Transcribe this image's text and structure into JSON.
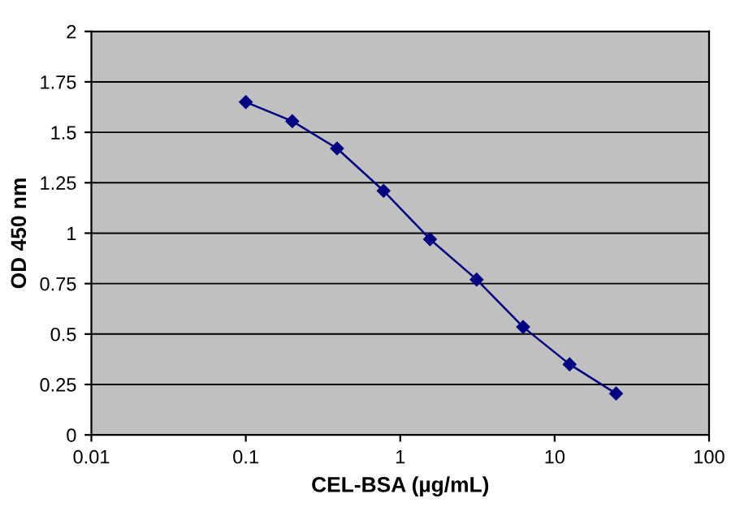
{
  "chart_data": {
    "type": "line",
    "xlabel": "CEL-BSA (µg/mL)",
    "ylabel": "OD 450 nm",
    "x": [
      0.1,
      0.2,
      0.39,
      0.78,
      1.56,
      3.125,
      6.25,
      12.5,
      25
    ],
    "series": [
      {
        "color": "#000080",
        "values": [
          1.65,
          1.555,
          1.42,
          1.21,
          0.97,
          0.77,
          0.535,
          0.35,
          0.205
        ]
      }
    ],
    "log": "x",
    "xlim": [
      0.01,
      100
    ],
    "xticks": [
      0.01,
      0.1,
      1,
      10,
      100
    ],
    "ylim": [
      0,
      2
    ],
    "yticks": [
      0,
      0.25,
      0.5,
      0.75,
      1,
      1.25,
      1.5,
      1.75,
      2
    ],
    "grid": "y",
    "marker": "diamond",
    "line_style": "solid",
    "legend": false
  }
}
